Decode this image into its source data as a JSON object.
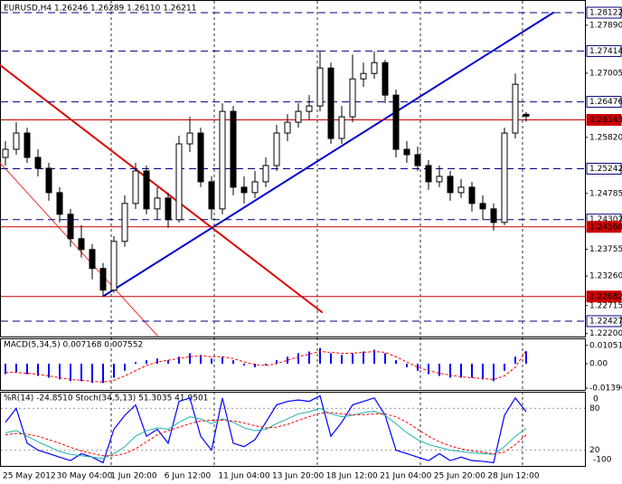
{
  "chart_data": [
    {
      "type": "candlestick",
      "title": "EURUSD,H4  1.26246 1.26289 1.26110 1.26211",
      "open": [
        1.2545,
        1.256,
        1.259,
        1.2545,
        1.2525,
        1.248,
        1.244,
        1.2395,
        1.2375,
        1.234,
        1.23,
        1.239,
        1.246,
        1.252,
        1.245,
        1.247,
        1.243,
        1.257,
        1.259,
        1.25,
        1.245,
        1.263,
        1.249,
        1.248,
        1.25,
        1.253,
        1.259,
        1.261,
        1.263,
        1.264,
        1.271,
        1.258,
        1.262,
        1.269,
        1.27,
        1.272,
        1.266,
        1.256,
        1.255,
        1.253,
        1.25,
        1.251,
        1.248,
        1.249,
        1.246,
        1.245,
        1.2425,
        1.259,
        1.26246
      ],
      "high": [
        1.2575,
        1.261,
        1.26,
        1.256,
        1.2535,
        1.249,
        1.245,
        1.242,
        1.2385,
        1.235,
        1.24,
        1.2475,
        1.2535,
        1.253,
        1.249,
        1.248,
        1.2585,
        1.262,
        1.26,
        1.251,
        1.2645,
        1.264,
        1.251,
        1.252,
        1.2545,
        1.2605,
        1.2625,
        1.2645,
        1.266,
        1.274,
        1.272,
        1.264,
        1.2735,
        1.272,
        1.2741,
        1.2725,
        1.267,
        1.2575,
        1.2565,
        1.254,
        1.253,
        1.252,
        1.2505,
        1.25,
        1.2475,
        1.246,
        1.26,
        1.27,
        1.26289
      ],
      "low": [
        1.253,
        1.255,
        1.2535,
        1.251,
        1.2465,
        1.2425,
        1.238,
        1.236,
        1.232,
        1.2288,
        1.2295,
        1.238,
        1.245,
        1.244,
        1.243,
        1.2415,
        1.2425,
        1.2555,
        1.249,
        1.243,
        1.244,
        1.2475,
        1.246,
        1.247,
        1.249,
        1.252,
        1.2575,
        1.26,
        1.2615,
        1.263,
        1.257,
        1.257,
        1.261,
        1.2675,
        1.269,
        1.2645,
        1.2545,
        1.2535,
        1.252,
        1.2485,
        1.249,
        1.2465,
        1.247,
        1.2445,
        1.243,
        1.241,
        1.242,
        1.258,
        1.2611
      ],
      "close": [
        1.256,
        1.259,
        1.2545,
        1.2525,
        1.248,
        1.244,
        1.2395,
        1.2375,
        1.234,
        1.23,
        1.239,
        1.246,
        1.252,
        1.245,
        1.247,
        1.243,
        1.257,
        1.259,
        1.25,
        1.245,
        1.263,
        1.249,
        1.248,
        1.25,
        1.253,
        1.259,
        1.261,
        1.263,
        1.264,
        1.271,
        1.258,
        1.262,
        1.269,
        1.27,
        1.272,
        1.266,
        1.256,
        1.255,
        1.253,
        1.25,
        1.251,
        1.248,
        1.249,
        1.246,
        1.245,
        1.2425,
        1.259,
        1.268,
        1.26211
      ],
      "ylim": [
        1.22143,
        1.28306
      ],
      "yticks": [
        1.27005,
        1.24785,
        1.23755,
        {
          "value": 1.2789,
          "label": "1.27890"
        },
        {
          "value": 1.2582,
          "label": "1.25820"
        },
        {
          "value": 1.2326,
          "label": "1.23260"
        },
        1.22715,
        {
          "value": 1.222,
          "label": "1.22200"
        }
      ],
      "levels": [
        {
          "value": 1.28122,
          "color": "#000080",
          "style": "dashed"
        },
        {
          "value": 1.27414,
          "color": "#000080",
          "style": "dashed"
        },
        {
          "value": 1.26476,
          "color": "#000080",
          "style": "dashed"
        },
        {
          "value": 1.26143,
          "color": "#cc0000",
          "style": "solid"
        },
        {
          "value": 1.25242,
          "color": "#000080",
          "style": "dashed"
        },
        {
          "value": 1.24302,
          "color": "#000080",
          "style": "dashed"
        },
        {
          "value": 1.24168,
          "color": "#cc0000",
          "style": "solid"
        },
        {
          "value": 1.22882,
          "color": "#cc0000",
          "style": "solid"
        },
        {
          "value": 1.22427,
          "color": "#000080",
          "style": "dashed"
        }
      ],
      "x_tick_labels": [
        "25 May 2012",
        "30 May 04:00",
        "1 Jun 20:00",
        "6 Jun 12:00",
        "11 Jun 04:00",
        "13 Jun 20:00",
        "18 Jun 12:00",
        "21 Jun 04:00",
        "25 Jun 20:00",
        "28 Jun 12:00"
      ]
    },
    {
      "type": "macd",
      "title": "MACD(5,34,5) 0.007168 0.007552",
      "series": [
        {
          "color": "#0000ff",
          "values": [
            -0.006,
            -0.005,
            -0.006,
            -0.007,
            -0.008,
            -0.009,
            -0.01,
            -0.01,
            -0.011,
            -0.011,
            -0.008,
            -0.004,
            0.001,
            0.002,
            0.003,
            0.002,
            0.004,
            0.006,
            0.005,
            0.003,
            0.004,
            0.002,
            -0.001,
            -0.002,
            -0.001,
            0.002,
            0.004,
            0.006,
            0.007,
            0.009,
            0.006,
            0.005,
            0.006,
            0.007,
            0.008,
            0.006,
            0.002,
            -0.002,
            -0.004,
            -0.006,
            -0.007,
            -0.008,
            -0.008,
            -0.008,
            -0.009,
            -0.01,
            -0.004,
            0.004,
            0.007168
          ]
        },
        {
          "color": "#ff0000",
          "values": [
            -0.005,
            -0.005,
            -0.0055,
            -0.006,
            -0.007,
            -0.008,
            -0.009,
            -0.0095,
            -0.01,
            -0.0105,
            -0.0095,
            -0.007,
            -0.004,
            -0.001,
            0.001,
            0.002,
            0.003,
            0.004,
            0.0045,
            0.004,
            0.004,
            0.003,
            0.001,
            -0.0005,
            -0.001,
            0.0,
            0.002,
            0.004,
            0.0055,
            0.007,
            0.0065,
            0.006,
            0.006,
            0.0065,
            0.007,
            0.0065,
            0.004,
            0.001,
            -0.002,
            -0.004,
            -0.0055,
            -0.0065,
            -0.0075,
            -0.008,
            -0.0085,
            -0.009,
            -0.007,
            -0.002,
            0.007552
          ]
        }
      ],
      "ylim": [
        -0.0145,
        0.0135
      ],
      "yticks": [
        0.010515,
        {
          "value": 0,
          "label": "0.00"
        },
        -0.01396
      ]
    },
    {
      "type": "oscillator",
      "title": "%R(14) -24.8510 Stoch(34,5,13) 51.3035 41.9501",
      "series": [
        {
          "color": "#0000ff",
          "axis": "y2",
          "values": [
            -40,
            -20,
            -70,
            -80,
            -85,
            -90,
            -95,
            -85,
            -90,
            -98,
            -50,
            -30,
            -15,
            -60,
            -50,
            -70,
            -10,
            -5,
            -60,
            -80,
            -5,
            -70,
            -75,
            -65,
            -40,
            -15,
            -10,
            -8,
            -10,
            -2,
            -60,
            -40,
            -15,
            -10,
            -5,
            -30,
            -80,
            -85,
            -90,
            -95,
            -85,
            -95,
            -90,
            -95,
            -96,
            -98,
            -30,
            -5,
            -24.851
          ]
        },
        {
          "color": "#20b2aa",
          "values": [
            45,
            48,
            40,
            32,
            25,
            18,
            14,
            12,
            10,
            8,
            15,
            25,
            40,
            48,
            52,
            50,
            60,
            68,
            65,
            58,
            65,
            60,
            52,
            48,
            50,
            58,
            65,
            72,
            75,
            80,
            72,
            68,
            70,
            74,
            76,
            70,
            58,
            45,
            35,
            28,
            24,
            20,
            18,
            16,
            15,
            14,
            25,
            40,
            51.3035
          ]
        },
        {
          "color": "#ff0000",
          "values": [
            42,
            44,
            43,
            40,
            35,
            30,
            24,
            19,
            15,
            12,
            12,
            15,
            22,
            32,
            42,
            48,
            53,
            58,
            62,
            63,
            63,
            62,
            59,
            55,
            52,
            53,
            57,
            63,
            68,
            73,
            74,
            72,
            71,
            71,
            72,
            72,
            68,
            60,
            50,
            40,
            32,
            26,
            22,
            19,
            17,
            15,
            17,
            28,
            41.9501
          ]
        }
      ],
      "ylim": [
        0,
        100
      ],
      "yticks": [
        80,
        20
      ],
      "y2lim": [
        -100,
        0
      ],
      "y2ticks": [
        0,
        -100
      ]
    }
  ]
}
